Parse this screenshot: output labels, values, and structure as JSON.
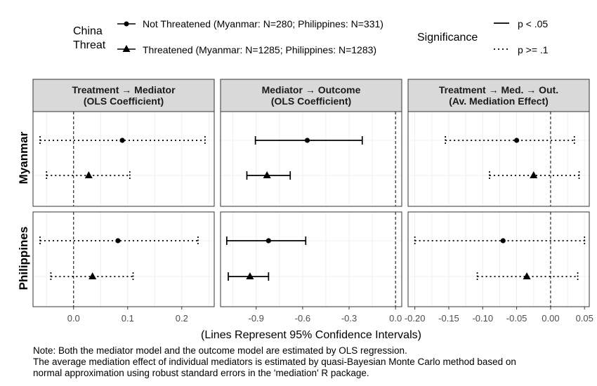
{
  "legend": {
    "group_title_line1": "China",
    "group_title_line2": "Threat",
    "items": [
      {
        "label": "Not Threatened (Myanmar: N=280; Philippines: N=331)",
        "shape": "circle"
      },
      {
        "label": "Threatened (Myanmar: N=1285; Philippines: N=1283)",
        "shape": "triangle"
      }
    ],
    "sig_title": "Significance",
    "sig_items": [
      {
        "label": "p < .05",
        "linetype": "solid"
      },
      {
        "label": "p >= .1",
        "linetype": "dotted"
      }
    ]
  },
  "chart_data": {
    "type": "scatter",
    "subtype": "coefficient plot with 95% confidence intervals (facet grid)",
    "x_axis_title": "(Lines Represent 95% Confidence Intervals)",
    "columns": [
      {
        "title": [
          "Treatment → Mediator",
          "(OLS Coefficient)"
        ],
        "xlim": [
          -0.075,
          0.26
        ],
        "ticks": [
          0.0,
          0.1,
          0.2
        ],
        "tick_labels": [
          "0.0",
          "0.1",
          "0.2"
        ]
      },
      {
        "title": [
          "Mediator → Outcome",
          "(OLS Coefficient)"
        ],
        "xlim": [
          -1.13,
          0.04
        ],
        "ticks": [
          -0.9,
          -0.6,
          -0.3,
          0.0
        ],
        "tick_labels": [
          "-0.9",
          "-0.6",
          "-0.3",
          "0.0"
        ]
      },
      {
        "title": [
          "Treatment → Med. → Out.",
          "(Av. Mediation Effect)"
        ],
        "xlim": [
          -0.21,
          0.057
        ],
        "ticks": [
          -0.2,
          -0.15,
          -0.1,
          -0.05,
          0.0,
          0.05
        ],
        "tick_labels": [
          "-0.20",
          "-0.15",
          "-0.10",
          "-0.05",
          "0.00",
          "0.05"
        ]
      }
    ],
    "rows": [
      "Myanmar",
      "Philippines"
    ],
    "series": [
      {
        "name": "Not Threatened",
        "shape": "circle",
        "points": [
          {
            "row": 0,
            "col": 0,
            "est": 0.09,
            "lo": -0.062,
            "hi": 0.243,
            "sig": "p >= .1"
          },
          {
            "row": 0,
            "col": 1,
            "est": -0.57,
            "lo": -0.905,
            "hi": -0.215,
            "sig": "p < .05"
          },
          {
            "row": 0,
            "col": 2,
            "est": -0.05,
            "lo": -0.155,
            "hi": 0.035,
            "sig": "p >= .1"
          },
          {
            "row": 1,
            "col": 0,
            "est": 0.082,
            "lo": -0.062,
            "hi": 0.23,
            "sig": "p >= .1"
          },
          {
            "row": 1,
            "col": 1,
            "est": -0.82,
            "lo": -1.09,
            "hi": -0.58,
            "sig": "p < .05"
          },
          {
            "row": 1,
            "col": 2,
            "est": -0.07,
            "lo": -0.2,
            "hi": 0.05,
            "sig": "p >= .1"
          }
        ]
      },
      {
        "name": "Threatened",
        "shape": "triangle",
        "points": [
          {
            "row": 0,
            "col": 0,
            "est": 0.028,
            "lo": -0.05,
            "hi": 0.104,
            "sig": "p >= .1"
          },
          {
            "row": 0,
            "col": 1,
            "est": -0.83,
            "lo": -0.96,
            "hi": -0.68,
            "sig": "p < .05"
          },
          {
            "row": 0,
            "col": 2,
            "est": -0.025,
            "lo": -0.09,
            "hi": 0.042,
            "sig": "p >= .1"
          },
          {
            "row": 1,
            "col": 0,
            "est": 0.035,
            "lo": -0.042,
            "hi": 0.11,
            "sig": "p >= .1"
          },
          {
            "row": 1,
            "col": 1,
            "est": -0.94,
            "lo": -1.08,
            "hi": -0.82,
            "sig": "p < .05"
          },
          {
            "row": 1,
            "col": 2,
            "est": -0.035,
            "lo": -0.108,
            "hi": 0.04,
            "sig": "p >= .1"
          }
        ]
      }
    ],
    "reference_line": 0,
    "grid": true
  },
  "note": {
    "line1": "Note: Both the mediator model and the outcome model are estimated by OLS regression.",
    "line2": "The average mediation effect of individual mediators is estimated by quasi-Bayesian Monte Carlo method based on",
    "line3": "normal approximation using robust standard errors in the 'mediation' R package."
  }
}
